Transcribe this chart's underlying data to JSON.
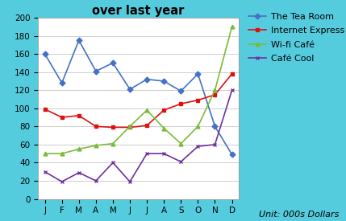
{
  "unit_label": "Unit: 000s Dollars",
  "months": [
    "J",
    "F",
    "M",
    "A",
    "M",
    "J",
    "J",
    "A",
    "S",
    "O",
    "N",
    "D"
  ],
  "series": [
    {
      "name": "The Tea Room",
      "values": [
        160,
        128,
        175,
        141,
        150,
        121,
        132,
        130,
        119,
        138,
        80,
        49
      ],
      "color": "#4472C4",
      "marker": "D"
    },
    {
      "name": "Internet Express",
      "values": [
        99,
        90,
        92,
        80,
        79,
        79,
        81,
        98,
        105,
        109,
        115,
        138
      ],
      "color": "#DD1111",
      "marker": "s"
    },
    {
      "name": "Wi-fi Café",
      "values": [
        50,
        50,
        55,
        59,
        61,
        80,
        98,
        78,
        61,
        80,
        120,
        190
      ],
      "color": "#7CBB3A",
      "marker": "^"
    },
    {
      "name": "Café Cool",
      "values": [
        30,
        19,
        29,
        20,
        40,
        19,
        50,
        50,
        41,
        58,
        60,
        120
      ],
      "color": "#7030A0",
      "marker": "x"
    }
  ],
  "ylim": [
    0,
    200
  ],
  "yticks": [
    0,
    20,
    40,
    60,
    80,
    100,
    120,
    140,
    160,
    180,
    200
  ],
  "background_color": "#FFFFFF",
  "border_color": "#55CCDD",
  "title_fontsize": 10.5,
  "legend_fontsize": 8,
  "tick_fontsize": 7.5,
  "unit_fontsize": 8
}
